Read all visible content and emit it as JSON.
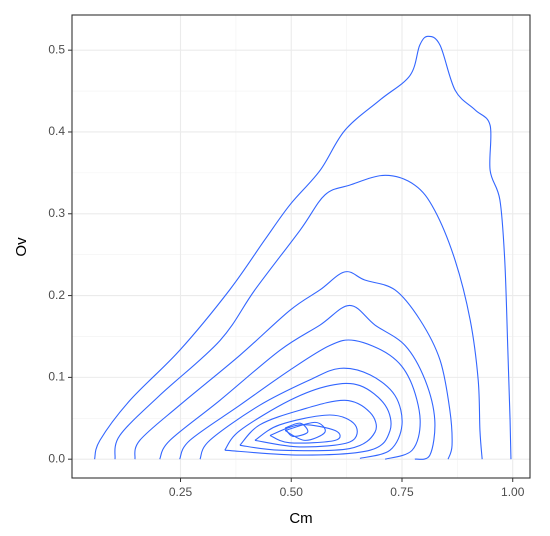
{
  "chart_data": {
    "type": "contour",
    "x_label": "Cm",
    "y_label": "Ov",
    "color": "#3366ff",
    "grid": true,
    "xlim": [
      0.005,
      1.039
    ],
    "ylim": [
      -0.023,
      0.543
    ],
    "xticks": [
      0.25,
      {
        "value": 0.5,
        "label": "0.50"
      },
      0.75,
      {
        "value": 1,
        "label": "1.00"
      }
    ],
    "yticks": [
      {
        "value": 0,
        "label": "0.0"
      },
      0.1,
      0.2,
      0.3,
      0.4,
      0.5
    ],
    "series": [
      {
        "x": [
          0.056,
          0.068,
          0.136,
          0.248,
          0.361,
          0.44,
          0.497,
          0.565,
          0.621,
          0.7,
          0.768,
          0.79,
          0.809,
          0.836,
          0.87,
          0.915,
          0.949,
          0.949,
          0.971,
          0.982,
          0.989,
          0.994,
          0.996
        ],
        "values": [
          0,
          0.023,
          0.072,
          0.133,
          0.207,
          0.268,
          0.311,
          0.353,
          0.402,
          0.439,
          0.469,
          0.506,
          0.517,
          0.506,
          0.451,
          0.427,
          0.408,
          0.353,
          0.317,
          0.243,
          0.133,
          0.048,
          0
        ]
      },
      {
        "x": [
          0.102,
          0.113,
          0.203,
          0.339,
          0.418,
          0.52,
          0.576,
          0.632,
          0.712,
          0.779,
          0.824,
          0.87,
          0.904,
          0.922,
          0.926,
          0.931
        ],
        "values": [
          0,
          0.029,
          0.078,
          0.145,
          0.207,
          0.28,
          0.323,
          0.335,
          0.347,
          0.335,
          0.304,
          0.243,
          0.17,
          0.097,
          0.035,
          0
        ]
      },
      {
        "x": [
          0.147,
          0.158,
          0.248,
          0.384,
          0.497,
          0.565,
          0.621,
          0.666,
          0.734,
          0.791,
          0.836,
          0.858,
          0.863,
          0.854
        ],
        "values": [
          0,
          0.023,
          0.066,
          0.127,
          0.182,
          0.207,
          0.229,
          0.219,
          0.207,
          0.17,
          0.121,
          0.06,
          0.017,
          0
        ]
      },
      {
        "x": [
          0.203,
          0.226,
          0.339,
          0.474,
          0.565,
          0.632,
          0.689,
          0.757,
          0.802,
          0.824,
          0.813,
          0.779
        ],
        "values": [
          0,
          0.023,
          0.072,
          0.133,
          0.164,
          0.188,
          0.164,
          0.139,
          0.097,
          0.048,
          0.005,
          0
        ]
      },
      {
        "x": [
          0.248,
          0.271,
          0.384,
          0.497,
          0.587,
          0.644,
          0.723,
          0.768,
          0.791,
          0.773,
          0.712
        ],
        "values": [
          0,
          0.023,
          0.066,
          0.109,
          0.139,
          0.145,
          0.127,
          0.097,
          0.048,
          0.011,
          0
        ]
      },
      {
        "x": [
          0.294,
          0.316,
          0.429,
          0.542,
          0.61,
          0.678,
          0.734,
          0.75,
          0.723,
          0.655
        ],
        "values": [
          0,
          0.023,
          0.066,
          0.097,
          0.111,
          0.103,
          0.078,
          0.042,
          0.011,
          0.001
        ]
      },
      {
        "x": [
          0.35,
          0.384,
          0.497,
          0.587,
          0.655,
          0.712,
          0.723,
          0.678,
          0.52,
          0.35
        ],
        "values": [
          0.011,
          0.035,
          0.072,
          0.09,
          0.09,
          0.066,
          0.035,
          0.011,
          0.005,
          0.011
        ]
      },
      {
        "x": [
          0.384,
          0.429,
          0.52,
          0.621,
          0.678,
          0.689,
          0.632,
          0.474,
          0.384
        ],
        "values": [
          0.017,
          0.042,
          0.06,
          0.072,
          0.057,
          0.033,
          0.013,
          0.011,
          0.017
        ]
      },
      {
        "x": [
          0.418,
          0.474,
          0.587,
          0.644,
          0.632,
          0.52,
          0.418
        ],
        "values": [
          0.023,
          0.042,
          0.054,
          0.042,
          0.021,
          0.015,
          0.023
        ]
      },
      {
        "x": [
          0.452,
          0.52,
          0.599,
          0.599,
          0.497,
          0.452
        ],
        "values": [
          0.029,
          0.042,
          0.035,
          0.023,
          0.02,
          0.029
        ]
      },
      {
        "x": [
          0.486,
          0.554,
          0.576,
          0.531,
          0.486
        ],
        "values": [
          0.035,
          0.045,
          0.033,
          0.023,
          0.035
        ]
      },
      {
        "x": [
          0.486,
          0.52,
          0.537,
          0.503,
          0.486
        ],
        "values": [
          0.038,
          0.044,
          0.033,
          0.028,
          0.038
        ]
      }
    ]
  }
}
